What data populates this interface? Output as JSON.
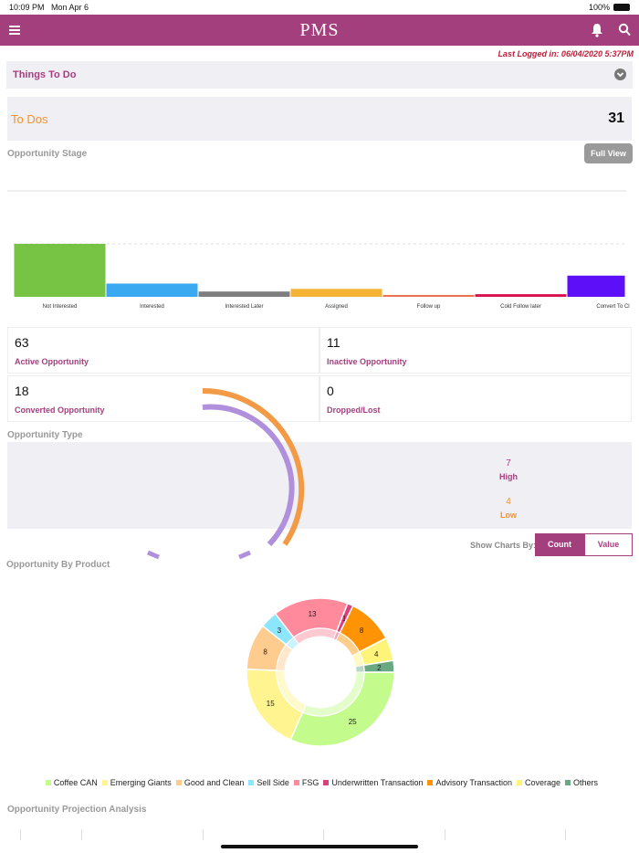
{
  "status_bar": {
    "time": "10:09 PM",
    "date": "Mon Apr 6",
    "battery": "100%"
  },
  "header": {
    "title": "PMS",
    "menu_icon": "hamburger-icon",
    "bell_icon": "bell-icon",
    "search_icon": "search-icon",
    "color": "#a43f7e"
  },
  "last_logged": "Last Logged in: 06/04/2020  5:37PM",
  "things_to_do": {
    "label": "Things To Do"
  },
  "todos": {
    "label": "To Dos",
    "count": "31"
  },
  "opportunity_stage": {
    "title": "Opportunity Stage",
    "full_view": "Full View"
  },
  "chart_data": {
    "type": "bar",
    "categories": [
      "Not Interested",
      "Interested",
      "Interested Later",
      "Assigned",
      "Follow up",
      "Cold Follow later",
      "Convert To Cl"
    ],
    "values": [
      20,
      5,
      2,
      3,
      0.7,
      1,
      8
    ],
    "colors": [
      "#77c344",
      "#3aa9f2",
      "#7f7f7f",
      "#f4b334",
      "#ee7152",
      "#d8124f",
      "#5d0ff7"
    ],
    "ylim": [
      0,
      40
    ],
    "grid": true
  },
  "stats": [
    {
      "value": "63",
      "label": "Active Opportunity"
    },
    {
      "value": "11",
      "label": "Inactive Opportunity"
    },
    {
      "value": "18",
      "label": "Converted Opportunity"
    },
    {
      "value": "0",
      "label": "Dropped/Lost"
    }
  ],
  "opportunity_type": {
    "title": "Opportunity Type",
    "high_value": "7",
    "high_label": "High",
    "low_value": "4",
    "low_label": "Low"
  },
  "show_charts": {
    "label": "Show Charts By:",
    "count": "Count",
    "value": "Value"
  },
  "product": {
    "title": "Opportunity By Product",
    "chart_data": {
      "type": "pie",
      "categories": [
        "Coffee CAN",
        "Emerging Giants",
        "Good and Clean",
        "Sell Side",
        "FSG",
        "Underwritten Transaction",
        "Advisory Transaction",
        "Coverage",
        "Others"
      ],
      "values": [
        25,
        15,
        8,
        3,
        13,
        1,
        8,
        4,
        2
      ],
      "colors": [
        "#c3fb8d",
        "#fff48f",
        "#ffcc8f",
        "#8ce6fd",
        "#ff8a9c",
        "#d9407e",
        "#fe9405",
        "#fff47a",
        "#68a883"
      ]
    }
  },
  "projection": {
    "title": "Opportunity Projection Analysis"
  }
}
